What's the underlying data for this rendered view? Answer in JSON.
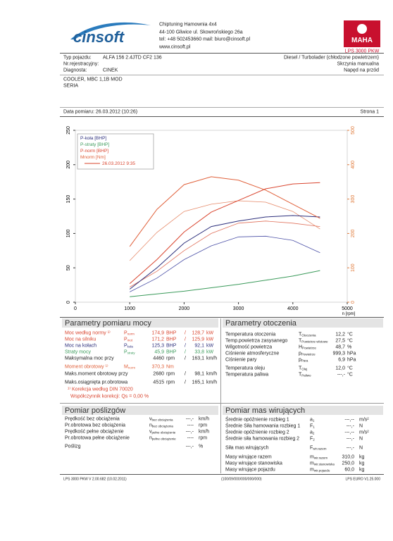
{
  "header": {
    "logo": "cinsoft",
    "company_lines": [
      "Chiptuning Hamownia 4x4",
      "44-100 Gliwice ul. Skowrońskiego 26a",
      "tel: +48 502453660  mail: biuro@cinsoft.pl",
      "www.cinsoft.pl"
    ],
    "brand": "MAHA",
    "brand_model": "LPS 3000 PKW"
  },
  "vehicle": {
    "fields": [
      {
        "label": "Typ pojazdu:",
        "value": "ALFA 156 2.4JTD CF2 136"
      },
      {
        "label": "Nr.rejestracyjny:"
      },
      {
        "label": "Diagnosta:",
        "value": "CINEK"
      }
    ],
    "specs": [
      "Diesel / Turbolader (chłodzone powietrzem)",
      "Skrzynia manualna",
      "Napęd na przód"
    ],
    "comments": [
      "COOLER, MBC 1,1B MOD",
      "SERIA"
    ],
    "date": "Data pomiaru: 26.03.2012 (10:26)",
    "page": "Strona 1"
  },
  "chart_data": {
    "type": "line",
    "x_label": "n [rpm]",
    "x": [
      1000,
      1500,
      2000,
      2500,
      3000,
      3500,
      4000,
      4500
    ],
    "xlim": [
      0,
      5000
    ],
    "xticks": [
      0,
      1000,
      2000,
      3000,
      4000,
      5000
    ],
    "ylim": [
      0,
      250
    ],
    "yticks": [
      0,
      50,
      100,
      150,
      200,
      250
    ],
    "y2lim": [
      0,
      500
    ],
    "y2ticks": [
      0,
      100,
      200,
      300,
      400,
      500
    ],
    "y2color": "#e07a3a",
    "grid": false,
    "series": [
      {
        "name": "P-koła [BHP]",
        "color": "#2c2f7c",
        "values": [
          19,
          50,
          86,
          110,
          118,
          124,
          126,
          124
        ]
      },
      {
        "name": "P-straty [BHP]",
        "color": "#3a9a5a",
        "values": [
          8,
          12,
          16,
          21,
          26,
          32,
          38,
          46
        ]
      },
      {
        "name": "P-norm [BHP]",
        "color": "#d9442e",
        "values": [
          27,
          62,
          102,
          131,
          148,
          165,
          172,
          174
        ]
      },
      {
        "name": "Mnorm [Nm]",
        "color": "#e0603a",
        "axis": "y2",
        "values": [
          162,
          270,
          342,
          365,
          355,
          326,
          285,
          244
        ]
      }
    ],
    "reference": {
      "label": "26.03.2012 9:35",
      "color": "#d9442e",
      "series": [
        {
          "color": "#4a4fa6",
          "values": [
            15,
            35,
            62,
            82,
            95,
            96,
            90,
            72
          ]
        },
        {
          "color": "#e0705a",
          "values": [
            22,
            45,
            75,
            100,
            115,
            118,
            115,
            110
          ]
        },
        {
          "color": "#e68a6a",
          "axis": "y2",
          "values": [
            121,
            203,
            264,
            285,
            295,
            291,
            264,
            213
          ]
        }
      ]
    }
  },
  "power": {
    "title": "Parametry pomiaru mocy",
    "rows": [
      {
        "label": "Moc według normy ¹⁾",
        "sym": "P",
        "sub": "norm",
        "value": "174,9",
        "unit": "BHP",
        "sep": "/",
        "value2": "128,7",
        "unit2": "kW",
        "color": "#d9442e"
      },
      {
        "label": "Moc na silniku",
        "sym": "P",
        "sub": "mot",
        "value": "171,2",
        "unit": "BHP",
        "sep": "/",
        "value2": "125,9",
        "unit2": "kW",
        "color": "#d9442e"
      },
      {
        "label": "Moc na kołach",
        "sym": "P",
        "sub": "koła",
        "value": "125,3",
        "unit": "BHP",
        "sep": "/",
        "value2": "92,1",
        "unit2": "kW",
        "color": "#2c2f7c"
      },
      {
        "label": "Straty mocy",
        "sym": "P",
        "sub": "straty",
        "value": "45,9",
        "unit": "BHP",
        "sep": "/",
        "value2": "33,8",
        "unit2": "kW",
        "color": "#3a9a5a"
      },
      {
        "label": "Maksymalna moc przy",
        "value": "4460",
        "unit": "rpm",
        "sep": "/",
        "value2": "163,1",
        "unit2": "km/h",
        "color": "#222222"
      },
      {
        "label": "Moment obrotowy ¹⁾",
        "sym": "M",
        "sub": "norm",
        "value": "370,3",
        "unit": "Nm",
        "color": "#e0603a"
      },
      {
        "label": "Maks.moment obrotowy przy",
        "value": "2680",
        "unit": "rpm",
        "sep": "/",
        "value2": "98,1",
        "unit2": "km/h",
        "color": "#222222"
      },
      {
        "label": "Maks.osiągnięta pr.obrotowa",
        "value": "4515",
        "unit": "rpm",
        "sep": "/",
        "value2": "165,1",
        "unit2": "km/h",
        "color": "#222222"
      }
    ],
    "notes": [
      "¹⁾ Korekcja według DIN 70020",
      "Współczynnik korekcji: Qs = 0,00 %"
    ]
  },
  "environment": {
    "title": "Parametry otoczenia",
    "rows": [
      {
        "label": "Temperatura otoczenia",
        "sym": "T",
        "sub": "Otoczenia",
        "value": "12,2",
        "unit": "°C"
      },
      {
        "label": "Temp.powietrza zasysanego",
        "sym": "T",
        "sub": "Powietrze wlotowe",
        "value": "27,5",
        "unit": "°C"
      },
      {
        "label": "Wilgotność powietrza",
        "sym": "H",
        "sub": "Powietrze",
        "value": "48,7",
        "unit": "%"
      },
      {
        "label": "Ciśnienie atmosferyczne",
        "sym": "p",
        "sub": "Powietrze",
        "value": "999,3",
        "unit": "hPa"
      },
      {
        "label": "Ciśnienie pary",
        "sym": "p",
        "sub": "Para",
        "value": "6,9",
        "unit": "hPa"
      },
      {
        "label": "Temperatura oleju",
        "sym": "T",
        "sub": "Olej",
        "value": "12,0",
        "unit": "°C"
      },
      {
        "label": "Temperatura paliwa",
        "sym": "T",
        "sub": "Paliwo",
        "value": "---,-",
        "unit": "°C"
      }
    ]
  },
  "slip": {
    "title": "Pomiar poślizgów",
    "rows": [
      {
        "label": "Prędkość bez obciążenia",
        "sym": "v",
        "sub": "bez obciążenia",
        "value": "---,-",
        "unit": "km/h"
      },
      {
        "label": "Pr.obrotowa bez obciążenia",
        "sym": "n",
        "sub": "bez obciążenia",
        "value": "----",
        "unit": "rpm"
      },
      {
        "label": "Prędkość pełne obciążenie",
        "sym": "v",
        "sub": "pełne obciążenie",
        "value": "---,-",
        "unit": "km/h"
      },
      {
        "label": "Pr.obrotowa pełne obciążenie",
        "sym": "n",
        "sub": "pełne obciążenie",
        "value": "----",
        "unit": "rpm"
      },
      {
        "label": "Poślizg",
        "value": "---,-",
        "unit": "%"
      }
    ]
  },
  "masses": {
    "title": "Pomiar mas wirujących",
    "rows": [
      {
        "label": "Średnie opóźnienie rozbieg 1",
        "sym": "a",
        "sub": "1",
        "value": "---,--",
        "unit": "m/s²"
      },
      {
        "label": "Średnie Siła hamowania rozbieg 1",
        "sym": "F",
        "sub": "1",
        "value": "---,-",
        "unit": "N"
      },
      {
        "label": "Średnie opóźnienie rozbieg 2",
        "sym": "a",
        "sub": "2",
        "value": "---,--",
        "unit": "m/s²"
      },
      {
        "label": "Średnie siła hamowania rozbieg 2",
        "sym": "F",
        "sub": "2",
        "value": "---,-",
        "unit": "N"
      },
      {
        "label": "Siła mas wirujących",
        "sym": "F",
        "sub": "wir.razem",
        "value": "---,-",
        "unit": "N"
      },
      {
        "label": "Masy wirujące razem",
        "sym": "m",
        "sub": "wir.razem",
        "value": "310,0",
        "unit": "kg"
      },
      {
        "label": "Masy wirujące stanowiska",
        "sym": "m",
        "sub": "wir.stanowiska",
        "value": "250,0",
        "unit": "kg"
      },
      {
        "label": "Masy wirujące pojazdu",
        "sym": "m",
        "sub": "wir.pojazdu",
        "value": "60,0",
        "unit": "kg"
      }
    ]
  },
  "footer": [
    "LPS 3000 PKW V 2.00.682 (10.02.2011)",
    "(100/09/000/000/000/000)",
    "LPS EURO V1.25.000"
  ]
}
